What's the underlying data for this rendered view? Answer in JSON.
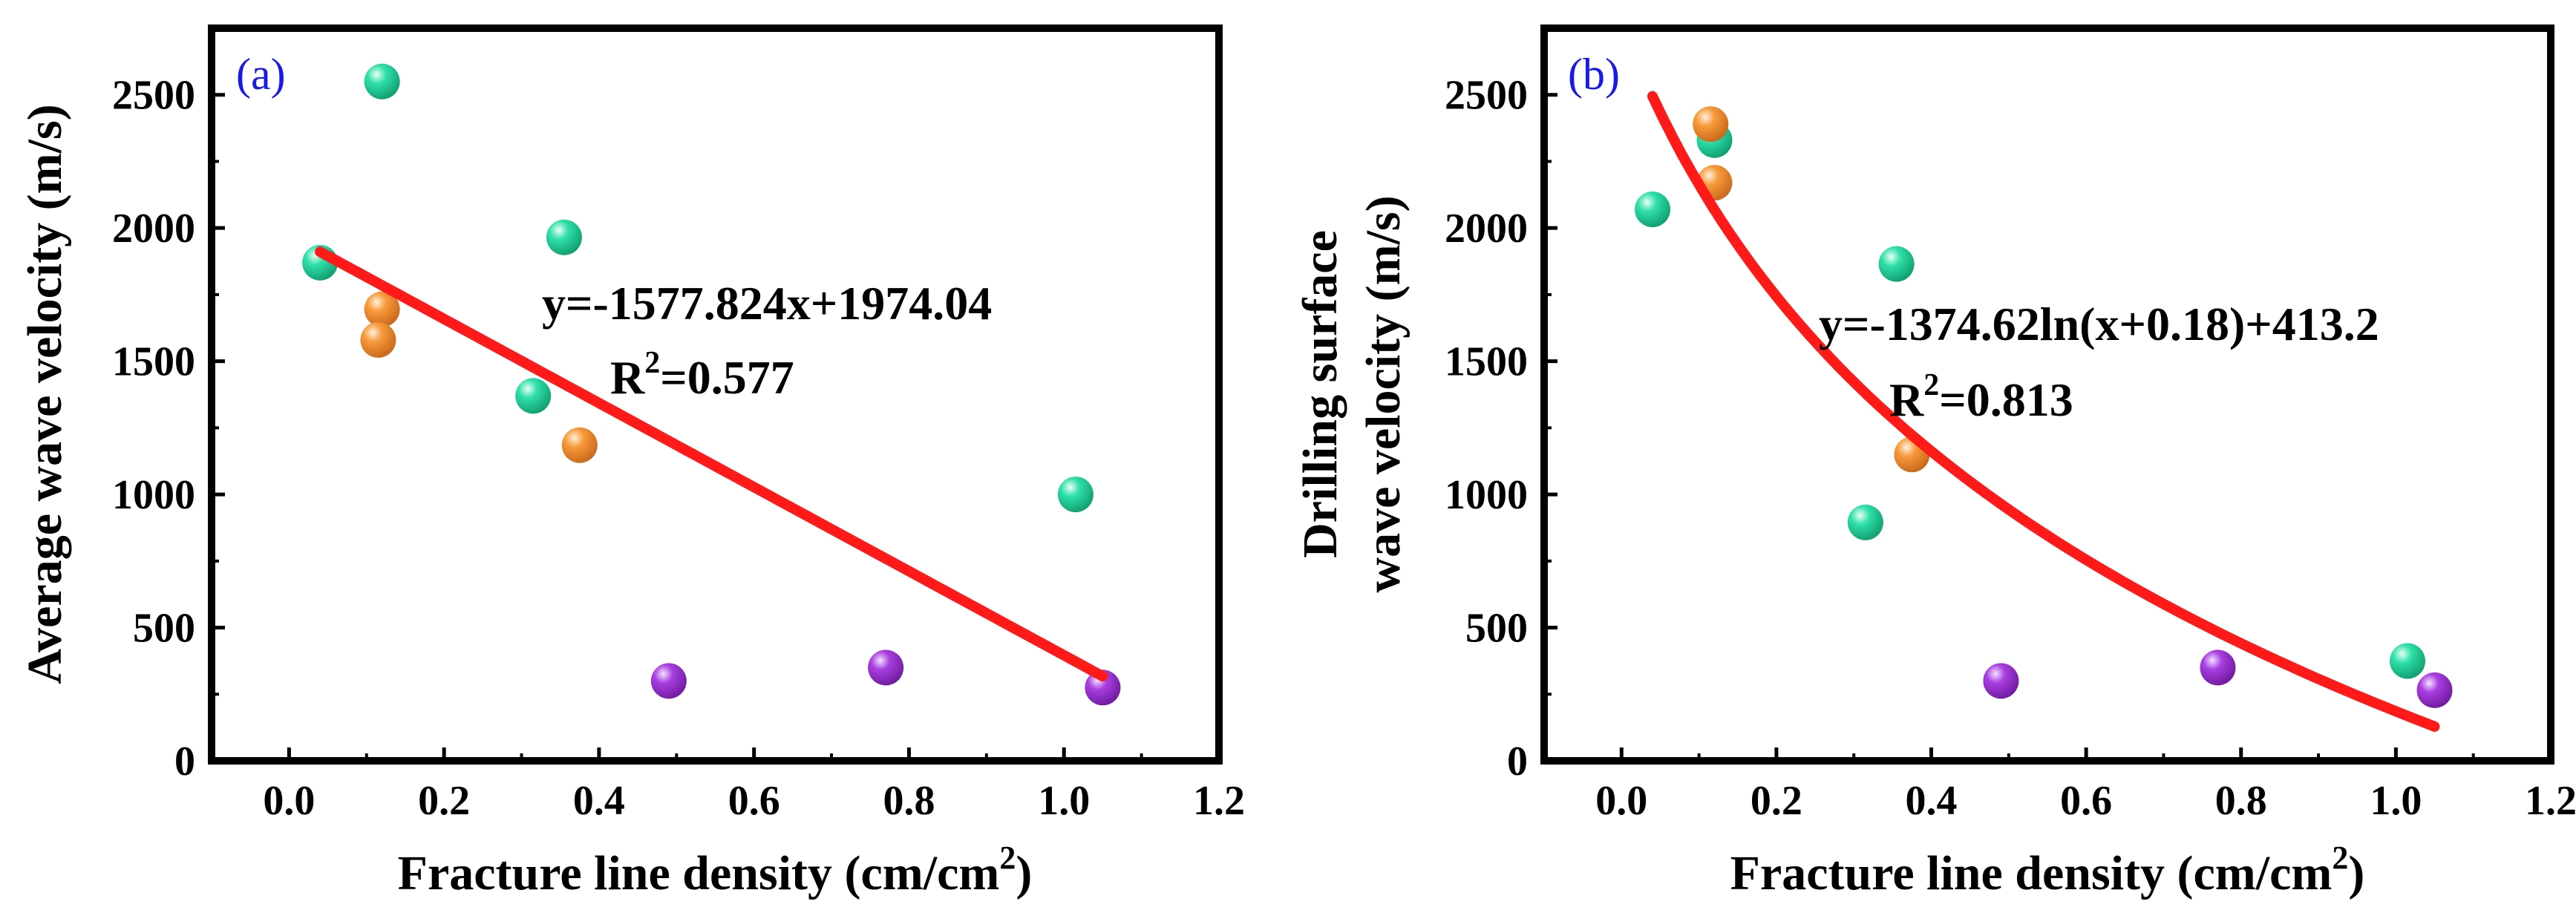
{
  "colors": {
    "fit_line": "#ff1a1a",
    "panel_label": "#1a1ae6",
    "point_colors": {
      "green": "#1fd29a",
      "orange": "#f28c2c",
      "purple": "#9b2fcf"
    }
  },
  "chart_data": [
    {
      "type": "scatter",
      "panel_label": "(a)",
      "xlabel": "Fracture line density (cm/cm",
      "xlabel_sup": "2",
      "xlabel_end": ")",
      "ylabel_lines": [
        "Average wave velocity (m/s)"
      ],
      "xlim": [
        -0.1,
        1.2
      ],
      "ylim": [
        0,
        2750
      ],
      "xticks": [
        0.0,
        0.2,
        0.4,
        0.6,
        0.8,
        1.0,
        1.2
      ],
      "xtick_labels": [
        "0.0",
        "0.2",
        "0.4",
        "0.6",
        "0.8",
        "1.0",
        "1.2"
      ],
      "yticks": [
        0,
        500,
        1000,
        1500,
        2000,
        2500
      ],
      "ytick_labels": [
        "0",
        "500",
        "1000",
        "1500",
        "2000",
        "2500"
      ],
      "series": [
        {
          "name": "green",
          "color": "green",
          "points": [
            [
              0.04,
              1870
            ],
            [
              0.12,
              2550
            ],
            [
              0.355,
              1965
            ],
            [
              0.315,
              1370
            ],
            [
              1.015,
              1000
            ]
          ]
        },
        {
          "name": "orange",
          "color": "orange",
          "points": [
            [
              0.12,
              1695
            ],
            [
              0.115,
              1580
            ],
            [
              0.375,
              1185
            ]
          ]
        },
        {
          "name": "purple",
          "color": "purple",
          "points": [
            [
              0.49,
              300
            ],
            [
              0.77,
              350
            ],
            [
              1.05,
              275
            ]
          ]
        }
      ],
      "fit": {
        "kind": "linear",
        "a": -1577.824,
        "b": 1974.04,
        "x_range": [
          0.04,
          1.05
        ]
      },
      "equation": "y=-1577.824x+1974.04",
      "r2_prefix": "R",
      "r2_sup": "2",
      "r2_value": "=0.577"
    },
    {
      "type": "scatter",
      "panel_label": "(b)",
      "xlabel": "Fracture line density (cm/cm",
      "xlabel_sup": "2",
      "xlabel_end": ")",
      "ylabel_lines": [
        "Drilling surface",
        "wave velocity (m/s)"
      ],
      "xlim": [
        -0.1,
        1.2
      ],
      "ylim": [
        0,
        2750
      ],
      "xticks": [
        0.0,
        0.2,
        0.4,
        0.6,
        0.8,
        1.0,
        1.2
      ],
      "xtick_labels": [
        "0.0",
        "0.2",
        "0.4",
        "0.6",
        "0.8",
        "1.0",
        "1.2"
      ],
      "yticks": [
        0,
        500,
        1000,
        1500,
        2000,
        2500
      ],
      "ytick_labels": [
        "0",
        "500",
        "1000",
        "1500",
        "2000",
        "2500"
      ],
      "series": [
        {
          "name": "green",
          "color": "green",
          "points": [
            [
              0.04,
              2070
            ],
            [
              0.12,
              2330
            ],
            [
              0.355,
              1865
            ],
            [
              0.315,
              895
            ],
            [
              1.015,
              375
            ]
          ]
        },
        {
          "name": "orange",
          "color": "orange",
          "points": [
            [
              0.115,
              2390
            ],
            [
              0.12,
              2170
            ],
            [
              0.375,
              1150
            ]
          ]
        },
        {
          "name": "purple",
          "color": "purple",
          "points": [
            [
              0.49,
              300
            ],
            [
              0.77,
              350
            ],
            [
              1.05,
              265
            ]
          ]
        }
      ],
      "fit": {
        "kind": "log",
        "a": -1374.62,
        "c": 0.18,
        "b": 413.2,
        "x_range": [
          0.04,
          1.05
        ]
      },
      "equation": "y=-1374.62ln(x+0.18)+413.2",
      "r2_prefix": "R",
      "r2_sup": "2",
      "r2_value": "=0.813"
    }
  ]
}
